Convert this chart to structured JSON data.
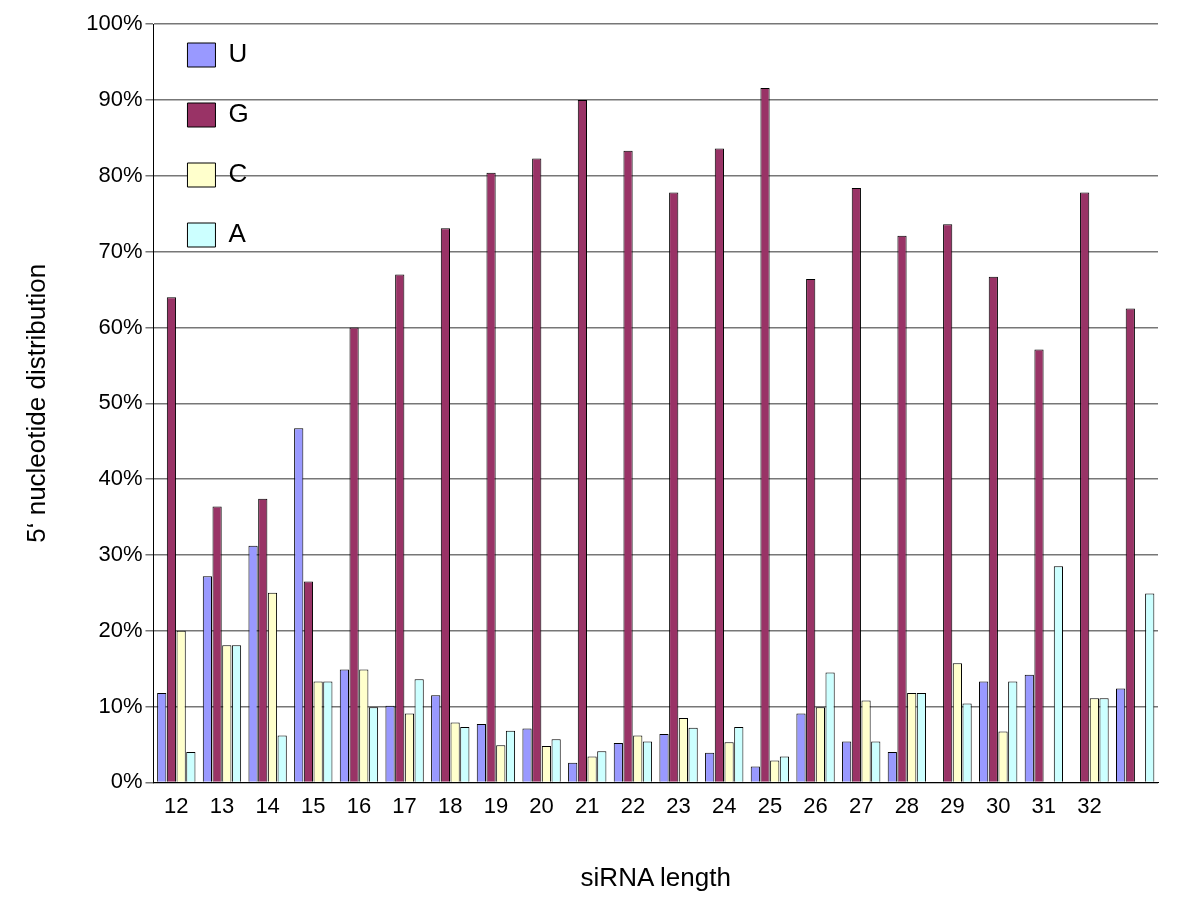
{
  "chart_data": {
    "type": "bar",
    "xlabel": "siRNA length",
    "ylabel": "5‘ nucleotide distribution",
    "categories": [
      "12",
      "13",
      "14",
      "15",
      "16",
      "17",
      "18",
      "19",
      "20",
      "21",
      "22",
      "23",
      "24",
      "25",
      "26",
      "27",
      "28",
      "29",
      "30",
      "31",
      "32",
      null
    ],
    "series": [
      {
        "name": "U",
        "color": "#9999ff",
        "values": [
          11.8,
          27.2,
          31.2,
          46.7,
          14.9,
          10.1,
          11.5,
          7.7,
          7.1,
          2.6,
          5.2,
          6.4,
          3.9,
          2.1,
          9.1,
          5.4,
          4.0,
          0,
          13.3,
          14.2,
          0,
          12.4
        ]
      },
      {
        "name": "G",
        "color": "#993366",
        "values": [
          64,
          36.4,
          37.4,
          26.5,
          60,
          67,
          73.1,
          80.4,
          82.3,
          90,
          83.3,
          77.8,
          83.6,
          91.6,
          66.4,
          78.4,
          72.1,
          73.6,
          66.7,
          57.1,
          77.8,
          62.5
        ]
      },
      {
        "name": "C",
        "color": "#ffffcc",
        "values": [
          20,
          18.1,
          25,
          13.3,
          14.9,
          9.1,
          7.9,
          4.9,
          4.8,
          3.4,
          6.2,
          8.5,
          5.3,
          2.9,
          9.9,
          10.8,
          11.8,
          15.7,
          6.7,
          0,
          11.1,
          null
        ]
      },
      {
        "name": "A",
        "color": "#ccffff",
        "values": [
          4.0,
          18.1,
          6.2,
          13.3,
          9.9,
          13.6,
          7.3,
          6.8,
          5.7,
          4.1,
          5.4,
          7.2,
          7.3,
          3.4,
          14.5,
          5.4,
          11.8,
          10.4,
          13.3,
          28.5,
          11.1,
          24.9
        ]
      }
    ],
    "ylim": [
      0,
      100
    ],
    "yticks": [
      {
        "value": 0,
        "label": "0%"
      },
      {
        "value": 10,
        "label": "10%"
      },
      {
        "value": 20,
        "label": "20%"
      },
      {
        "value": 30,
        "label": "30%"
      },
      {
        "value": 40,
        "label": "40%"
      },
      {
        "value": 50,
        "label": "50%"
      },
      {
        "value": 60,
        "label": "60%"
      },
      {
        "value": 70,
        "label": "70%"
      },
      {
        "value": 80,
        "label": "80%"
      },
      {
        "value": 90,
        "label": "90%"
      },
      {
        "value": 100,
        "label": "100%"
      }
    ],
    "grid": "y",
    "legend": "top left"
  }
}
